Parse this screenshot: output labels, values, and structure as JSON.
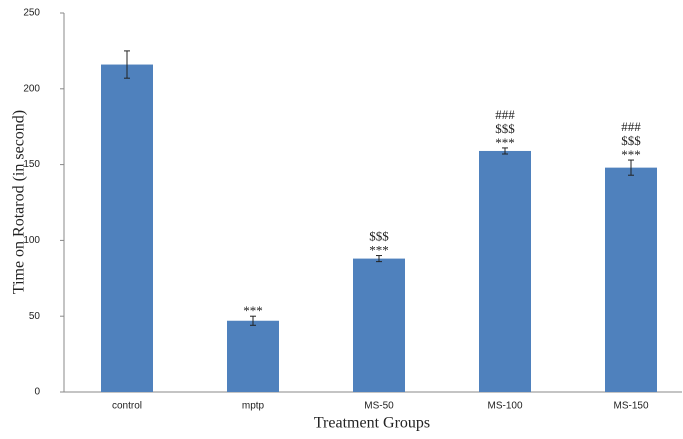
{
  "chart_data": {
    "type": "bar",
    "x_label": "Treatment Groups",
    "y_label": "Time on Rotarod (in second)",
    "categories": [
      "control",
      "mptp",
      "MS-50",
      "MS-100",
      "MS-150"
    ],
    "values": [
      216,
      47,
      88,
      159,
      148
    ],
    "errors": [
      9,
      3,
      2,
      2,
      5
    ],
    "annotations": [
      [],
      [
        "***"
      ],
      [
        "$$$",
        "***"
      ],
      [
        "###",
        "$$$",
        "***"
      ],
      [
        "###",
        "$$$",
        "***"
      ]
    ],
    "color": "#4f81bd",
    "ylim": [
      0,
      250
    ],
    "yticks": [
      0,
      50,
      100,
      150,
      200,
      250
    ],
    "grid": false
  }
}
